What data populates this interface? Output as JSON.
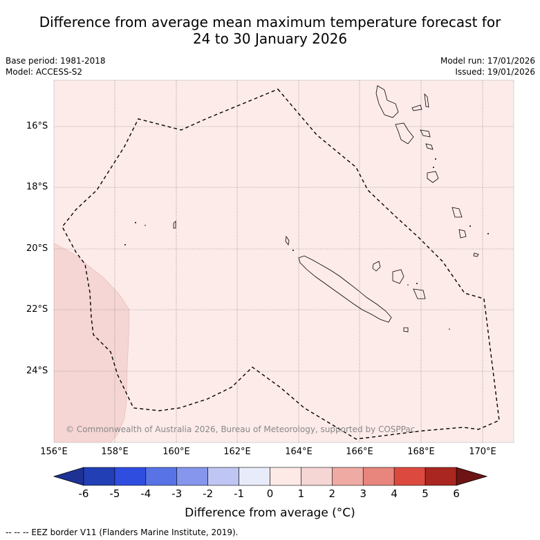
{
  "title": {
    "line1": "Difference from average mean maximum temperature forecast for",
    "line2": "24 to 30 January 2026"
  },
  "meta": {
    "base_period": "Base period: 1981-2018",
    "model": "Model: ACCESS-S2",
    "model_run": "Model run: 17/01/2026",
    "issued": "Issued: 19/01/2026"
  },
  "map": {
    "lat_ticks": [
      "16°S",
      "18°S",
      "20°S",
      "22°S",
      "24°S"
    ],
    "lon_ticks": [
      "156°E",
      "158°E",
      "160°E",
      "162°E",
      "164°E",
      "166°E",
      "168°E",
      "170°E"
    ],
    "copyright": "© Commonwealth of Australia 2026, Bureau of Meteorology, supported by COSPPac",
    "background_color": "#fcebe9",
    "anomaly_region_color": "#f5d6d4"
  },
  "colorbar": {
    "ticks": [
      "-6",
      "-5",
      "-4",
      "-3",
      "-2",
      "-1",
      "0",
      "1",
      "2",
      "3",
      "4",
      "5",
      "6"
    ],
    "colors": [
      "#1e3296",
      "#223fb5",
      "#2f4ee0",
      "#5873e6",
      "#8596ec",
      "#c0c6f3",
      "#e8ebfa",
      "#fdeae6",
      "#f5d6d4",
      "#efaaa4",
      "#e8857d",
      "#dc4a3f",
      "#aa2620",
      "#6e1414"
    ],
    "label": "Difference from average (°C)"
  },
  "footnote": "-- -- -- EEZ border V11 (Flanders Marine Institute, 2019)."
}
